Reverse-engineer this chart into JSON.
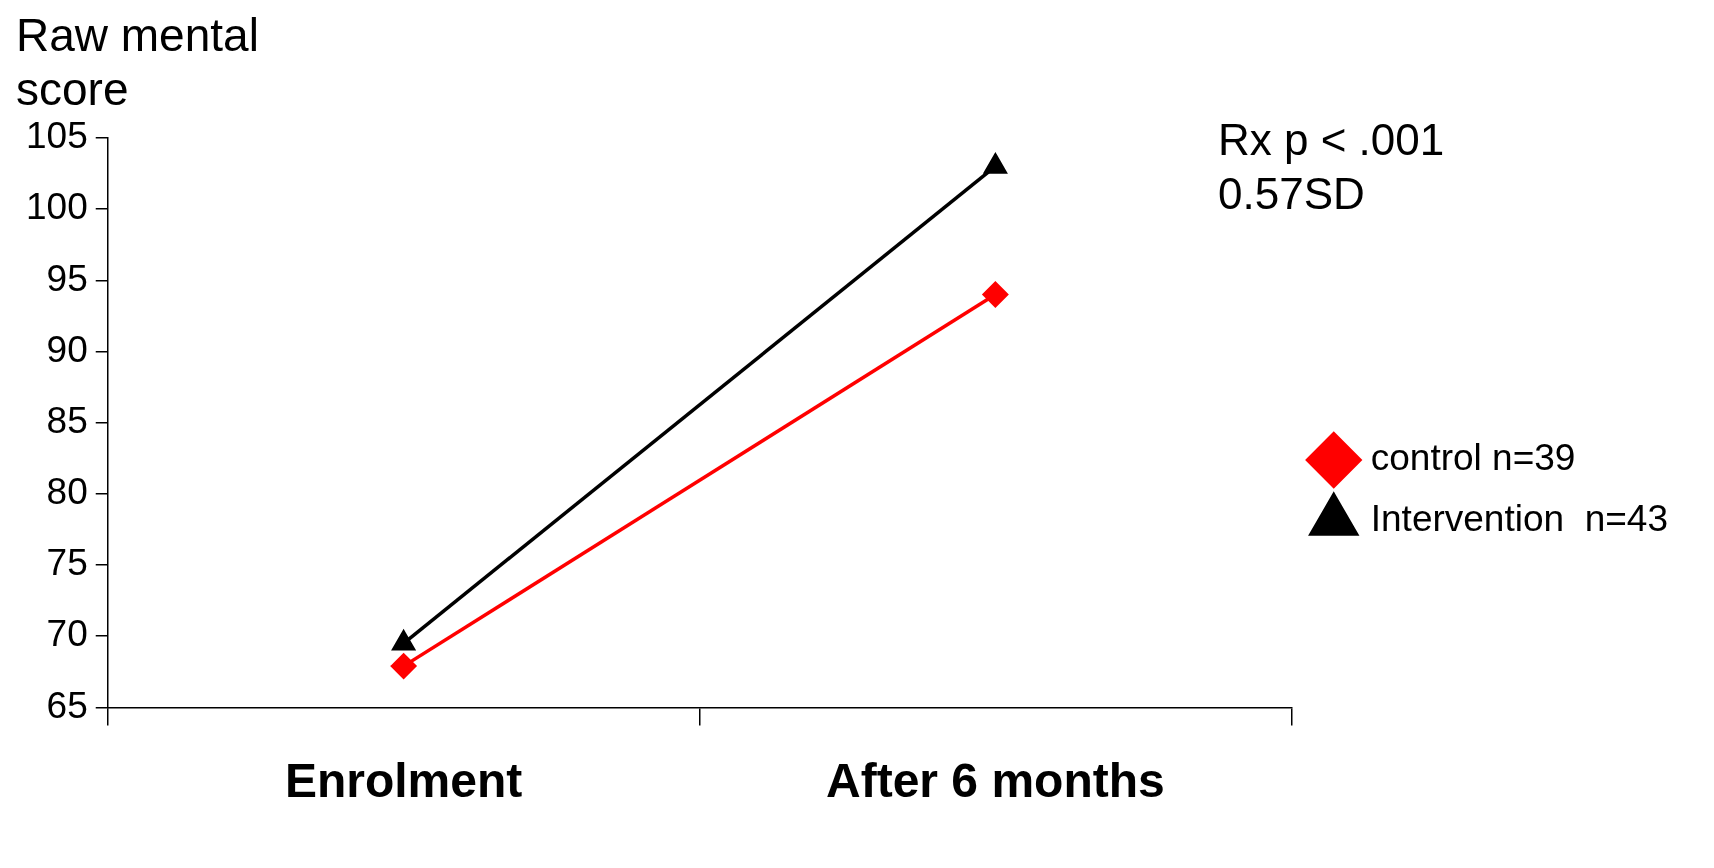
{
  "chart_data": {
    "type": "line",
    "ylabel": "Raw mental score",
    "categories": [
      "Enrolment",
      "After 6 months"
    ],
    "series": [
      {
        "name": "control n=39",
        "color": "#ff0000",
        "marker": "diamond",
        "values": [
          67.9,
          94
        ]
      },
      {
        "name": "Intervention  n=43",
        "color": "#000000",
        "marker": "triangle",
        "values": [
          69.5,
          103
        ]
      }
    ],
    "ylim": [
      65,
      105
    ],
    "yticks": [
      65,
      70,
      75,
      80,
      85,
      90,
      95,
      100,
      105
    ],
    "grid": false,
    "legend": "right",
    "annotations": [
      "Rx p < .001",
      "0.57SD"
    ]
  }
}
